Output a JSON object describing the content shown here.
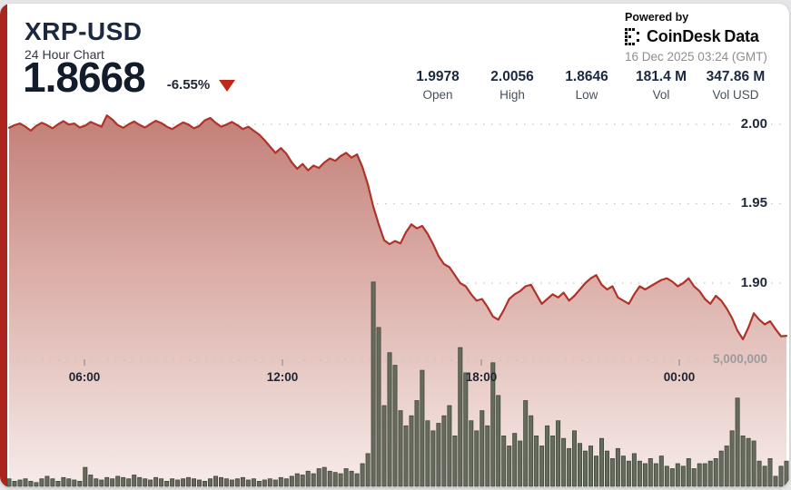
{
  "header": {
    "symbol": "XRP-USD",
    "subtitle": "24 Hour Chart",
    "price": "1.8668",
    "change": "-6.55%",
    "powered_by": "Powered by",
    "brand_part1": "CoinDesk",
    "brand_part2": "Data",
    "timestamp": "16 Dec 2025 03:24 (GMT)"
  },
  "stats": [
    {
      "value": "1.9978",
      "label": "Open"
    },
    {
      "value": "2.0056",
      "label": "High"
    },
    {
      "value": "1.8646",
      "label": "Low"
    },
    {
      "value": "181.4 M",
      "label": "Vol"
    },
    {
      "value": "347.86 M",
      "label": "Vol USD"
    }
  ],
  "colors": {
    "accent_bar": "#ab241d",
    "line": "#b0332a",
    "area_top": "#c28078",
    "area_mid": "#ddb2ac",
    "area_bottom": "#f7edeb",
    "bar_fill": "#666b5e",
    "bar_stroke": "#40463a",
    "grid": "#c3c3c3",
    "triangle": "#c0281c"
  },
  "chart_data": {
    "type": "area",
    "title": "XRP-USD 24 Hour Chart",
    "x_labels": [
      "06:00",
      "12:00",
      "18:00",
      "00:00"
    ],
    "y_axis": {
      "ticks": [
        "2.00",
        "1.95",
        "1.90"
      ],
      "tick_values": [
        2.0,
        1.95,
        1.9
      ],
      "range": [
        1.86,
        2.01
      ]
    },
    "volume_axis": {
      "tick": "5,000,000",
      "tick_value": 5000000
    },
    "open": 1.9978,
    "high": 2.0056,
    "low": 1.8646,
    "close": 1.8668,
    "price": {
      "name": "price",
      "values": [
        1.9978,
        1.9995,
        2.0005,
        1.9985,
        1.996,
        1.999,
        2.001,
        1.9995,
        1.9975,
        2.0,
        2.002,
        1.9998,
        2.0005,
        1.998,
        1.9992,
        2.0015,
        2.0,
        1.9985,
        2.0056,
        2.003,
        1.9995,
        1.9978,
        2.0,
        2.0018,
        1.9996,
        1.998,
        2.0002,
        2.0022,
        2.0008,
        1.9985,
        1.997,
        1.9992,
        2.0012,
        1.9998,
        1.9975,
        1.999,
        2.0025,
        2.004,
        2.001,
        1.9985,
        1.9998,
        2.0015,
        1.9995,
        1.997,
        1.9985,
        1.996,
        1.9935,
        1.99,
        1.986,
        1.982,
        1.985,
        1.9815,
        1.976,
        1.972,
        1.975,
        1.971,
        1.974,
        1.9725,
        1.976,
        1.9785,
        1.977,
        1.98,
        1.982,
        1.979,
        1.981,
        1.973,
        1.962,
        1.948,
        1.937,
        1.927,
        1.9245,
        1.9265,
        1.925,
        1.932,
        1.937,
        1.9345,
        1.936,
        1.931,
        1.9245,
        1.917,
        1.912,
        1.91,
        1.905,
        1.9,
        1.898,
        1.893,
        1.889,
        1.89,
        1.885,
        1.879,
        1.877,
        1.883,
        1.89,
        1.893,
        1.895,
        1.898,
        1.899,
        1.893,
        1.887,
        1.89,
        1.893,
        1.891,
        1.894,
        1.889,
        1.892,
        1.896,
        1.9,
        1.903,
        1.905,
        1.899,
        1.896,
        1.898,
        1.891,
        1.889,
        1.887,
        1.893,
        1.898,
        1.896,
        1.898,
        1.9,
        1.902,
        1.903,
        1.901,
        1.898,
        1.9,
        1.903,
        1.898,
        1.895,
        1.89,
        1.887,
        1.892,
        1.889,
        1.884,
        1.878,
        1.87,
        1.8646,
        1.872,
        1.881,
        1.877,
        1.874,
        1.876,
        1.871,
        1.8665,
        1.8668
      ]
    },
    "volume_millions": {
      "name": "volume",
      "values": [
        0.3,
        0.2,
        0.25,
        0.3,
        0.2,
        0.15,
        0.3,
        0.4,
        0.3,
        0.2,
        0.35,
        0.3,
        0.25,
        0.2,
        0.75,
        0.45,
        0.3,
        0.25,
        0.35,
        0.3,
        0.4,
        0.35,
        0.3,
        0.45,
        0.35,
        0.3,
        0.25,
        0.35,
        0.3,
        0.2,
        0.3,
        0.25,
        0.3,
        0.35,
        0.3,
        0.25,
        0.2,
        0.3,
        0.4,
        0.35,
        0.3,
        0.25,
        0.3,
        0.35,
        0.25,
        0.3,
        0.2,
        0.25,
        0.3,
        0.25,
        0.35,
        0.3,
        0.4,
        0.5,
        0.45,
        0.6,
        0.5,
        0.7,
        0.75,
        0.6,
        0.55,
        0.5,
        0.7,
        0.6,
        0.5,
        0.9,
        1.3,
        8.1,
        6.3,
        3.2,
        5.3,
        4.8,
        3.0,
        2.4,
        2.8,
        3.4,
        4.6,
        2.6,
        2.2,
        2.5,
        2.8,
        3.2,
        2.0,
        5.5,
        4.5,
        2.6,
        2.2,
        3.0,
        2.4,
        4.9,
        3.6,
        2.0,
        1.6,
        2.1,
        1.8,
        3.4,
        2.8,
        2.0,
        1.6,
        2.4,
        2.0,
        2.6,
        1.9,
        1.5,
        2.2,
        1.7,
        1.4,
        1.6,
        1.2,
        1.9,
        1.4,
        1.1,
        1.5,
        1.2,
        1.0,
        1.3,
        1.0,
        0.9,
        1.1,
        0.9,
        1.2,
        0.8,
        0.7,
        0.9,
        0.8,
        1.1,
        0.7,
        0.9,
        0.9,
        1.0,
        1.1,
        1.4,
        1.6,
        2.2,
        3.5,
        2.0,
        1.9,
        1.8,
        1.0,
        0.8,
        1.1,
        0.4,
        0.8,
        1.0
      ]
    }
  }
}
